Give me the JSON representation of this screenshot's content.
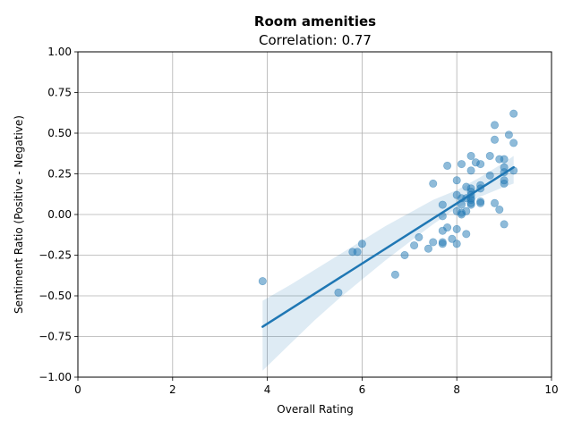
{
  "chart_data": {
    "type": "scatter",
    "title": "Room amenities",
    "subtitle": "Correlation: 0.77",
    "xlabel": "Overall Rating",
    "ylabel": "Sentiment Ratio (Positive - Negative)",
    "xlim": [
      0,
      10
    ],
    "ylim": [
      -1.0,
      1.0
    ],
    "x_ticks": [
      0,
      2,
      4,
      6,
      8,
      10
    ],
    "x_tick_labels": [
      "0",
      "2",
      "4",
      "6",
      "8",
      "10"
    ],
    "y_ticks": [
      -1.0,
      -0.75,
      -0.5,
      -0.25,
      0.0,
      0.25,
      0.5,
      0.75,
      1.0
    ],
    "y_tick_labels": [
      "−1.00",
      "−0.75",
      "−0.50",
      "−0.25",
      "0.00",
      "0.25",
      "0.50",
      "0.75",
      "1.00"
    ],
    "grid": true,
    "colors": {
      "points": "#1f77b4",
      "line": "#1f77b4",
      "band": "#1f77b4"
    },
    "points": [
      [
        3.9,
        -0.41
      ],
      [
        5.5,
        -0.48
      ],
      [
        5.8,
        -0.23
      ],
      [
        5.9,
        -0.23
      ],
      [
        6.0,
        -0.18
      ],
      [
        6.7,
        -0.37
      ],
      [
        6.9,
        -0.25
      ],
      [
        7.1,
        -0.19
      ],
      [
        7.2,
        -0.14
      ],
      [
        7.4,
        -0.21
      ],
      [
        7.5,
        -0.17
      ],
      [
        7.5,
        0.19
      ],
      [
        7.7,
        -0.17
      ],
      [
        7.7,
        -0.18
      ],
      [
        7.7,
        -0.1
      ],
      [
        7.7,
        -0.01
      ],
      [
        7.7,
        0.06
      ],
      [
        7.8,
        -0.08
      ],
      [
        7.8,
        0.3
      ],
      [
        7.9,
        -0.15
      ],
      [
        8.0,
        -0.18
      ],
      [
        8.0,
        -0.09
      ],
      [
        8.0,
        0.02
      ],
      [
        8.0,
        0.12
      ],
      [
        8.0,
        0.21
      ],
      [
        8.1,
        0.0
      ],
      [
        8.1,
        0.01
      ],
      [
        8.1,
        0.06
      ],
      [
        8.1,
        0.1
      ],
      [
        8.1,
        0.31
      ],
      [
        8.2,
        -0.12
      ],
      [
        8.2,
        0.02
      ],
      [
        8.2,
        0.1
      ],
      [
        8.2,
        0.17
      ],
      [
        8.3,
        0.06
      ],
      [
        8.3,
        0.07
      ],
      [
        8.3,
        0.09
      ],
      [
        8.3,
        0.1
      ],
      [
        8.3,
        0.12
      ],
      [
        8.3,
        0.14
      ],
      [
        8.3,
        0.16
      ],
      [
        8.3,
        0.27
      ],
      [
        8.3,
        0.36
      ],
      [
        8.4,
        0.32
      ],
      [
        8.5,
        0.07
      ],
      [
        8.5,
        0.08
      ],
      [
        8.5,
        0.16
      ],
      [
        8.5,
        0.18
      ],
      [
        8.5,
        0.31
      ],
      [
        8.7,
        0.24
      ],
      [
        8.7,
        0.36
      ],
      [
        8.8,
        0.07
      ],
      [
        8.8,
        0.46
      ],
      [
        8.8,
        0.55
      ],
      [
        8.9,
        0.03
      ],
      [
        8.9,
        0.34
      ],
      [
        9.0,
        -0.06
      ],
      [
        9.0,
        0.19
      ],
      [
        9.0,
        0.21
      ],
      [
        9.0,
        0.26
      ],
      [
        9.0,
        0.29
      ],
      [
        9.0,
        0.34
      ],
      [
        9.1,
        0.49
      ],
      [
        9.2,
        0.27
      ],
      [
        9.2,
        0.44
      ],
      [
        9.2,
        0.62
      ]
    ],
    "regression_line": {
      "x": [
        3.9,
        9.2
      ],
      "y": [
        -0.69,
        0.29
      ]
    },
    "confidence_band": {
      "x": [
        3.9,
        4.5,
        5.0,
        5.5,
        6.0,
        6.5,
        7.0,
        7.5,
        8.0,
        8.5,
        9.0,
        9.2
      ],
      "lower": [
        -0.96,
        -0.79,
        -0.65,
        -0.52,
        -0.4,
        -0.28,
        -0.17,
        -0.06,
        0.04,
        0.11,
        0.17,
        0.19
      ],
      "upper": [
        -0.53,
        -0.43,
        -0.34,
        -0.25,
        -0.16,
        -0.07,
        0.01,
        0.09,
        0.15,
        0.23,
        0.32,
        0.36
      ]
    }
  }
}
